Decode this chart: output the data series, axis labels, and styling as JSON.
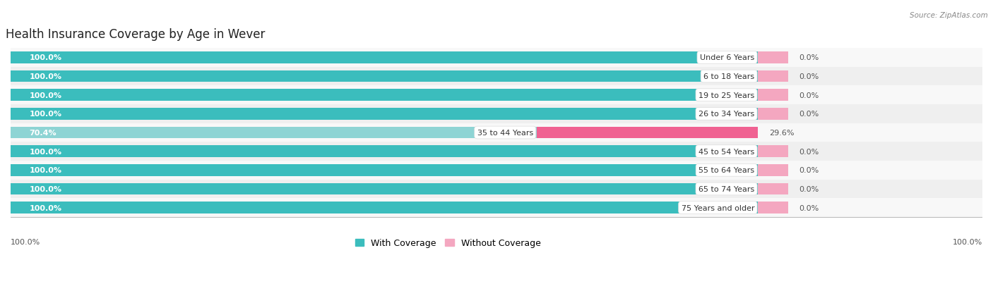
{
  "title": "Health Insurance Coverage by Age in Wever",
  "source": "Source: ZipAtlas.com",
  "categories": [
    "Under 6 Years",
    "6 to 18 Years",
    "19 to 25 Years",
    "26 to 34 Years",
    "35 to 44 Years",
    "45 to 54 Years",
    "55 to 64 Years",
    "65 to 74 Years",
    "75 Years and older"
  ],
  "with_coverage": [
    100.0,
    100.0,
    100.0,
    100.0,
    70.4,
    100.0,
    100.0,
    100.0,
    100.0
  ],
  "without_coverage": [
    0.0,
    0.0,
    0.0,
    0.0,
    29.6,
    0.0,
    0.0,
    0.0,
    0.0
  ],
  "color_with_normal": "#3bbdbd",
  "color_with_light": "#8ed4d4",
  "color_without_normal": "#f4a7c0",
  "color_without_bright": "#f06292",
  "title_fontsize": 12,
  "label_fontsize": 8,
  "cat_fontsize": 8,
  "tick_fontsize": 8,
  "legend_fontsize": 9,
  "xlim_max": 130
}
